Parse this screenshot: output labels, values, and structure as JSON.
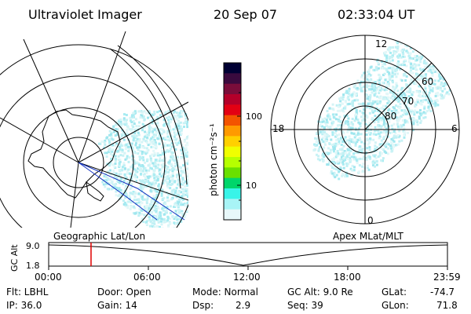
{
  "header": {
    "instrument": "Ultraviolet Imager",
    "date": "20 Sep 07",
    "time": "02:33:04 UT"
  },
  "colorbar": {
    "unit_label": "photon cm⁻²s⁻¹",
    "ticks": [
      "100",
      "10"
    ],
    "colors": [
      "#000033",
      "#3a0a3e",
      "#7a0d3a",
      "#b4002a",
      "#e30013",
      "#f35400",
      "#ff9a00",
      "#ffd000",
      "#f0ff00",
      "#b6ff00",
      "#6ae000",
      "#00d66a",
      "#38f4e8",
      "#a8f4f6",
      "#e8f8fa"
    ]
  },
  "left_plot": {
    "label": "Geographic Lat/Lon"
  },
  "right_plot": {
    "label": "Apex MLat/MLT",
    "mlt_labels": {
      "top": "12",
      "left": "18",
      "right": "6",
      "bottom": "0"
    },
    "lat_labels": [
      "60",
      "70",
      "80"
    ]
  },
  "timeline": {
    "axis_label": "GC Alt",
    "y_ticks": [
      "9.0",
      "1.8"
    ],
    "x_ticks": [
      "00:00",
      "06:00",
      "12:00",
      "18:00",
      "23:59"
    ],
    "current_marker_hours": 2.55,
    "marker_color": "#e00000"
  },
  "info": {
    "filter_label": "Flt: LBHL",
    "ip_label": "IP: 36.0",
    "door_label": "Door: Open",
    "gain_label": "Gain: 14",
    "mode_label": "Mode: Normal",
    "dsp_label": "Dsp:",
    "dsp_value": "2.9",
    "gcalt_label": "GC Alt: 9.0 Re",
    "seq_label": "Seq: 39",
    "glat_label": "GLat:",
    "glat_value": "-74.7",
    "glon_label": "GLon:",
    "glon_value": "71.8"
  }
}
